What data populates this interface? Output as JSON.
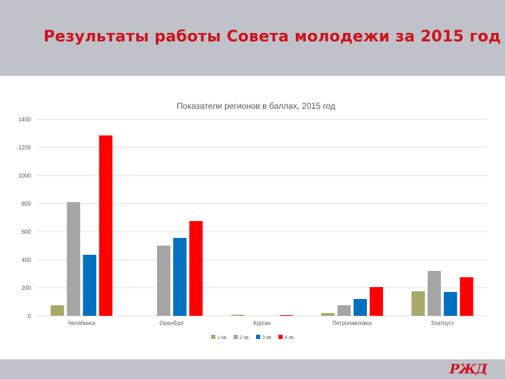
{
  "slide": {
    "title": "Результаты работы Совета молодежи за 2015 год"
  },
  "logo": {
    "text": "РЖД",
    "color": "#d0111b"
  },
  "colors": {
    "header_bg": "#bfc2c9",
    "title": "#d0111b",
    "grid": "#dcdcdc",
    "axis_text": "#595959"
  },
  "chart_data": {
    "type": "bar",
    "title": "Показатели регионов в баллах, 2015 год",
    "xlabel": "",
    "ylabel": "",
    "ylim": [
      0,
      1400
    ],
    "yticks": [
      0,
      200,
      400,
      600,
      800,
      1000,
      1200,
      1400
    ],
    "grid": true,
    "legend_position": "bottom",
    "categories": [
      "Челябинск",
      "Оренбург",
      "Курган",
      "Петропавловск",
      "Златоуст"
    ],
    "series": [
      {
        "name": "1 кв.",
        "color": "#aaa868",
        "values": [
          75,
          0,
          8,
          20,
          175
        ]
      },
      {
        "name": "2 кв.",
        "color": "#a5a5a5",
        "values": [
          810,
          500,
          0,
          75,
          320
        ]
      },
      {
        "name": "3 кв.",
        "color": "#0070c0",
        "values": [
          435,
          555,
          0,
          120,
          170
        ]
      },
      {
        "name": "4 кв.",
        "color": "#ff0000",
        "values": [
          1285,
          675,
          5,
          205,
          275
        ]
      }
    ]
  }
}
